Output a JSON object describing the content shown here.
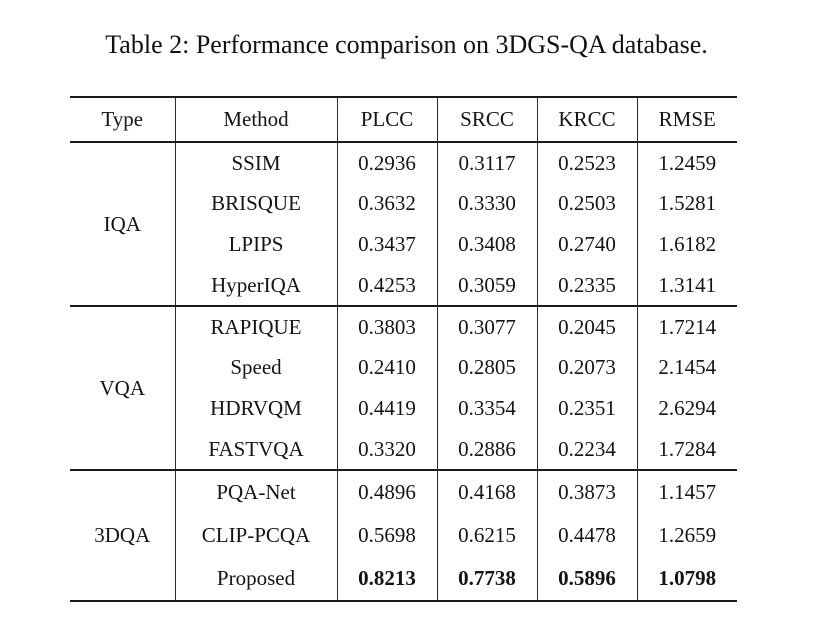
{
  "title": "Table 2: Performance comparison on 3DGS-QA database.",
  "table": {
    "columns": [
      "Type",
      "Method",
      "PLCC",
      "SRCC",
      "KRCC",
      "RMSE"
    ],
    "groups": [
      {
        "type": "IQA",
        "rows": [
          {
            "method": "SSIM",
            "values": [
              "0.2936",
              "0.3117",
              "0.2523",
              "1.2459"
            ]
          },
          {
            "method": "BRISQUE",
            "values": [
              "0.3632",
              "0.3330",
              "0.2503",
              "1.5281"
            ]
          },
          {
            "method": "LPIPS",
            "values": [
              "0.3437",
              "0.3408",
              "0.2740",
              "1.6182"
            ]
          },
          {
            "method": "HyperIQA",
            "values": [
              "0.4253",
              "0.3059",
              "0.2335",
              "1.3141"
            ]
          }
        ]
      },
      {
        "type": "VQA",
        "rows": [
          {
            "method": "RAPIQUE",
            "values": [
              "0.3803",
              "0.3077",
              "0.2045",
              "1.7214"
            ]
          },
          {
            "method": "Speed",
            "values": [
              "0.2410",
              "0.2805",
              "0.2073",
              "2.1454"
            ]
          },
          {
            "method": "HDRVQM",
            "values": [
              "0.4419",
              "0.3354",
              "0.2351",
              "2.6294"
            ]
          },
          {
            "method": "FASTVQA",
            "values": [
              "0.3320",
              "0.2886",
              "0.2234",
              "1.7284"
            ]
          }
        ]
      },
      {
        "type": "3DQA",
        "rows": [
          {
            "method": "PQA-Net",
            "values": [
              "0.4896",
              "0.4168",
              "0.3873",
              "1.1457"
            ]
          },
          {
            "method": "CLIP-PCQA",
            "values": [
              "0.5698",
              "0.6215",
              "0.4478",
              "1.2659"
            ]
          },
          {
            "method": "Proposed",
            "values": [
              "0.8213",
              "0.7738",
              "0.5896",
              "1.0798"
            ],
            "bold": true
          }
        ]
      }
    ]
  }
}
